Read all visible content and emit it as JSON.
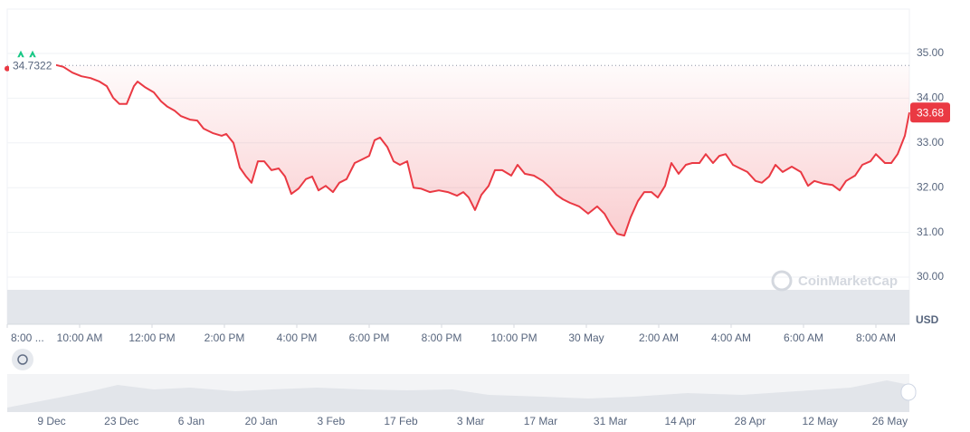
{
  "chart_data": {
    "type": "line",
    "series": [
      {
        "color": "#ea3943",
        "x": [
          0,
          0.3,
          1.35,
          1.55,
          1.8,
          2.05,
          2.3,
          2.55,
          2.75,
          2.925,
          3.1,
          3.3,
          3.5,
          3.6,
          3.8,
          4.05,
          4.25,
          4.425,
          4.625,
          4.8,
          5.05,
          5.25,
          5.425,
          5.675,
          5.925,
          6.05,
          6.25,
          6.425,
          6.6,
          6.75,
          6.925,
          7.1,
          7.3,
          7.5,
          7.675,
          7.85,
          8.05,
          8.25,
          8.425,
          8.6,
          8.8,
          9,
          9.175,
          9.375,
          9.6,
          9.8,
          10,
          10.15,
          10.3,
          10.5,
          10.675,
          10.85,
          11.05,
          11.225,
          11.425,
          11.675,
          11.925,
          12.175,
          12.425,
          12.6,
          12.75,
          12.925,
          13.1,
          13.3,
          13.475,
          13.675,
          13.925,
          14.1,
          14.3,
          14.55,
          14.8,
          15,
          15.175,
          15.35,
          15.55,
          15.8,
          16.05,
          16.3,
          16.5,
          16.675,
          16.85,
          17.05,
          17.225,
          17.425,
          17.6,
          17.8,
          17.975,
          18.175,
          18.35,
          18.55,
          18.75,
          18.925,
          19.125,
          19.3,
          19.5,
          19.675,
          19.85,
          20.05,
          20.25,
          20.45,
          20.675,
          20.85,
          21.05,
          21.225,
          21.425,
          21.675,
          21.925,
          22.125,
          22.3,
          22.55,
          22.8,
          23,
          23.175,
          23.425,
          23.625,
          23.85,
          24,
          24.25,
          24.425,
          24.6,
          24.8,
          24.925
        ],
        "values": [
          34.66,
          34.72,
          34.74,
          34.7,
          34.57,
          34.49,
          34.45,
          34.37,
          34.27,
          34.01,
          33.87,
          33.87,
          34.27,
          34.37,
          34.25,
          34.13,
          33.93,
          33.81,
          33.72,
          33.6,
          33.52,
          33.5,
          33.32,
          33.22,
          33.16,
          33.2,
          33.0,
          32.45,
          32.25,
          32.11,
          32.59,
          32.59,
          32.39,
          32.43,
          32.25,
          31.86,
          31.98,
          32.19,
          32.25,
          31.94,
          32.04,
          31.9,
          32.11,
          32.19,
          32.55,
          32.63,
          32.71,
          33.06,
          33.12,
          32.91,
          32.59,
          32.51,
          32.59,
          32.0,
          31.98,
          31.9,
          31.94,
          31.9,
          31.82,
          31.9,
          31.78,
          31.5,
          31.84,
          32.04,
          32.39,
          32.39,
          32.27,
          32.51,
          32.31,
          32.27,
          32.15,
          32.0,
          31.84,
          31.74,
          31.66,
          31.58,
          31.42,
          31.58,
          31.42,
          31.17,
          30.97,
          30.93,
          31.34,
          31.7,
          31.9,
          31.9,
          31.78,
          32.04,
          32.55,
          32.31,
          32.51,
          32.55,
          32.55,
          32.75,
          32.55,
          32.71,
          32.75,
          32.51,
          32.43,
          32.35,
          32.15,
          32.11,
          32.25,
          32.51,
          32.35,
          32.47,
          32.35,
          32.04,
          32.15,
          32.09,
          32.06,
          31.94,
          32.15,
          32.27,
          32.51,
          32.59,
          32.75,
          32.55,
          32.55,
          32.75,
          33.16,
          33.68
        ]
      }
    ],
    "reference_line": 34.7322,
    "last_price": 33.68,
    "currency": "USD",
    "watermark": "CoinMarketCap",
    "xlim": [
      0,
      24.925
    ],
    "xticks": [
      {
        "value": 0,
        "label": "8:00 ..."
      },
      {
        "value": 2,
        "label": "10:00 AM"
      },
      {
        "value": 4,
        "label": "12:00 PM"
      },
      {
        "value": 6,
        "label": "2:00 PM"
      },
      {
        "value": 8,
        "label": "4:00 PM"
      },
      {
        "value": 10,
        "label": "6:00 PM"
      },
      {
        "value": 12,
        "label": "8:00 PM"
      },
      {
        "value": 14,
        "label": "10:00 PM"
      },
      {
        "value": 16,
        "label": "30 May"
      },
      {
        "value": 18,
        "label": "2:00 AM"
      },
      {
        "value": 20,
        "label": "4:00 AM"
      },
      {
        "value": 22,
        "label": "6:00 AM"
      },
      {
        "value": 24,
        "label": "8:00 AM"
      }
    ],
    "ylim": [
      30,
      36
    ],
    "yticks": [
      {
        "value": 30,
        "label": "30.00"
      },
      {
        "value": 31,
        "label": "31.00"
      },
      {
        "value": 32,
        "label": "32.00"
      },
      {
        "value": 33,
        "label": "33.00"
      },
      {
        "value": 34,
        "label": "34.00"
      },
      {
        "value": 35,
        "label": "35.00"
      }
    ],
    "grid": true,
    "navigator_dates": [
      "9 Dec",
      "23 Dec",
      "6 Jan",
      "20 Jan",
      "3 Feb",
      "17 Feb",
      "3 Mar",
      "17 Mar",
      "31 Mar",
      "14 Apr",
      "28 Apr",
      "12 May",
      "26 May"
    ]
  }
}
